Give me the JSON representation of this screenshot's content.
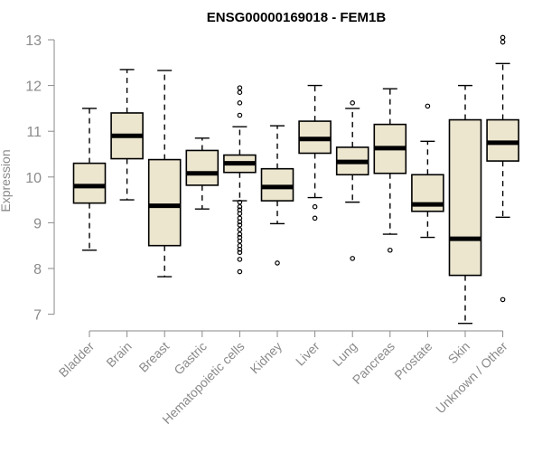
{
  "chart_data": {
    "type": "boxplot",
    "title": "ENSG00000169018 - FEM1B",
    "ylabel": "Expression",
    "xlabel": "",
    "ylim": [
      6.7,
      13.0
    ],
    "yticks": [
      7,
      8,
      9,
      10,
      11,
      12,
      13
    ],
    "grid": false,
    "colors": {
      "box_fill": "#ede6cf",
      "box_stroke": "#000000",
      "axis": "#8a8a8a",
      "title": "#000000"
    },
    "categories": [
      "Bladder",
      "Brain",
      "Breast",
      "Gastric",
      "Hematopoietic cells",
      "Kidney",
      "Liver",
      "Lung",
      "Pancreas",
      "Prostate",
      "Skin",
      "Unknown / Other"
    ],
    "boxes": [
      {
        "q1": 9.43,
        "median": 9.8,
        "q3": 10.3,
        "whisker_low": 8.4,
        "whisker_high": 11.5,
        "outliers": []
      },
      {
        "q1": 10.4,
        "median": 10.9,
        "q3": 11.4,
        "whisker_low": 9.5,
        "whisker_high": 12.35,
        "outliers": []
      },
      {
        "q1": 8.5,
        "median": 9.37,
        "q3": 10.38,
        "whisker_low": 7.82,
        "whisker_high": 12.33,
        "outliers": []
      },
      {
        "q1": 9.82,
        "median": 10.08,
        "q3": 10.58,
        "whisker_low": 9.3,
        "whisker_high": 10.85,
        "outliers": []
      },
      {
        "q1": 10.1,
        "median": 10.3,
        "q3": 10.48,
        "whisker_low": 9.48,
        "whisker_high": 11.1,
        "outliers": [
          11.95,
          11.85,
          11.62,
          11.35,
          9.45,
          9.35,
          9.28,
          9.2,
          9.1,
          9.02,
          8.95,
          8.85,
          8.75,
          8.68,
          8.6,
          8.5,
          8.42,
          8.35,
          8.2,
          7.93
        ]
      },
      {
        "q1": 9.48,
        "median": 9.78,
        "q3": 10.18,
        "whisker_low": 8.98,
        "whisker_high": 11.12,
        "outliers": [
          8.12
        ]
      },
      {
        "q1": 10.52,
        "median": 10.83,
        "q3": 11.22,
        "whisker_low": 9.55,
        "whisker_high": 12.0,
        "outliers": [
          9.35,
          9.1
        ]
      },
      {
        "q1": 10.05,
        "median": 10.33,
        "q3": 10.65,
        "whisker_low": 9.45,
        "whisker_high": 11.5,
        "outliers": [
          11.62,
          8.22
        ]
      },
      {
        "q1": 10.08,
        "median": 10.63,
        "q3": 11.15,
        "whisker_low": 8.75,
        "whisker_high": 11.93,
        "outliers": [
          8.4
        ]
      },
      {
        "q1": 9.25,
        "median": 9.4,
        "q3": 10.05,
        "whisker_low": 8.68,
        "whisker_high": 10.78,
        "outliers": [
          11.55
        ]
      },
      {
        "q1": 7.85,
        "median": 8.65,
        "q3": 11.25,
        "whisker_low": 6.8,
        "whisker_high": 12.0,
        "outliers": []
      },
      {
        "q1": 10.35,
        "median": 10.75,
        "q3": 11.25,
        "whisker_low": 9.12,
        "whisker_high": 12.48,
        "outliers": [
          13.05,
          12.95,
          7.32
        ]
      }
    ]
  }
}
